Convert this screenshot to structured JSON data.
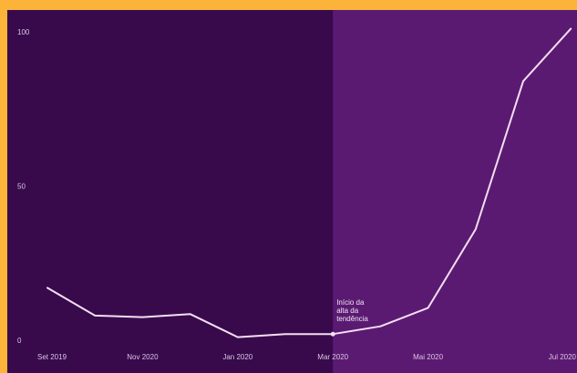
{
  "chart_data": {
    "type": "line",
    "title": "",
    "xlabel": "",
    "ylabel": "",
    "ylim": [
      0,
      100
    ],
    "grid": false,
    "legend": "none",
    "y_ticks": [
      "0",
      "50",
      "100"
    ],
    "x_ticks": [
      "Set 2019",
      "Nov 2020",
      "Jan 2020",
      "Mar 2020",
      "Mai 2020",
      "Jul 2020"
    ],
    "highlight_start_index": 6,
    "annotation": {
      "index": 6,
      "lines": [
        "Início da",
        "alta da",
        "tendência"
      ]
    },
    "series": [
      {
        "values": [
          17,
          8,
          7.5,
          8.5,
          1,
          2,
          2,
          4.5,
          10.5,
          36,
          84,
          101
        ]
      }
    ]
  },
  "colors": {
    "frame_border": "#fbb33a",
    "background_dark": "#380a4c",
    "background_highlight": "#5b1a72",
    "line": "#f4dff2",
    "tick_text": "#d9c6e3"
  }
}
